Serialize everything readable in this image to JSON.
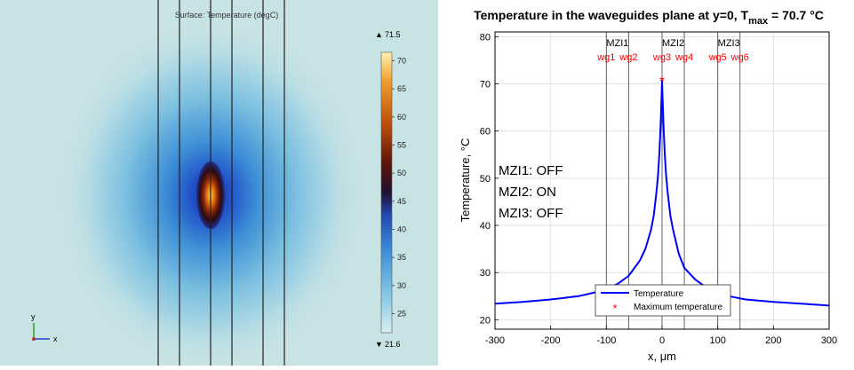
{
  "chart_data": [
    {
      "type": "heatmap",
      "title": "Surface: Temperature (degC)",
      "colorbar": {
        "max_label": "71.5",
        "min_label": "21.6",
        "ticks": [
          25,
          30,
          35,
          40,
          45,
          50,
          55,
          60,
          65,
          70
        ],
        "range": [
          21.6,
          71.5
        ]
      },
      "hotspot_center": 70.7,
      "axes_triad": {
        "y_label": "y",
        "x_label": "x"
      },
      "waveguide_lines_count": 6
    },
    {
      "type": "line",
      "title_main": "Temperature in the waveguides plane at y=0, T",
      "title_sub": "max",
      "title_value": " = 70.7 °C",
      "xlabel": "x, μm",
      "ylabel": "Temperature, °C",
      "xlim": [
        -300,
        300
      ],
      "ylim": [
        18,
        81
      ],
      "xticks": [
        -300,
        -200,
        -100,
        0,
        100,
        200,
        300
      ],
      "yticks": [
        20,
        30,
        40,
        50,
        60,
        70,
        80
      ],
      "grid": true,
      "series": [
        {
          "name": "Temperature",
          "color": "#0000ff",
          "x": [
            -300,
            -250,
            -200,
            -150,
            -120,
            -100,
            -80,
            -60,
            -40,
            -30,
            -20,
            -15,
            -10,
            -7,
            -5,
            -3,
            -2,
            -1,
            0,
            1,
            2,
            3,
            5,
            7,
            10,
            15,
            20,
            30,
            40,
            60,
            80,
            100,
            120,
            150,
            200,
            250,
            300
          ],
          "y": [
            23.4,
            23.8,
            24.3,
            25.0,
            25.8,
            26.6,
            27.6,
            29.3,
            32.5,
            35.0,
            39.0,
            42.0,
            47.0,
            51.0,
            55.0,
            60.0,
            63.0,
            67.0,
            70.7,
            67.0,
            63.0,
            60.0,
            55.0,
            51.0,
            47.0,
            42.0,
            39.0,
            34.0,
            31.0,
            28.5,
            26.8,
            25.8,
            25.0,
            24.3,
            23.8,
            23.4,
            23.0
          ]
        },
        {
          "name": "Maximum temperature",
          "color": "#ff0000",
          "marker": "*",
          "x": [
            0
          ],
          "y": [
            70.7
          ]
        }
      ],
      "vertical_lines": [
        -100,
        -60,
        0,
        40,
        100,
        140
      ],
      "mzi_labels": [
        {
          "text": "MZI1",
          "x": -80
        },
        {
          "text": "MZI2",
          "x": 20
        },
        {
          "text": "MZI3",
          "x": 120
        }
      ],
      "wg_labels": [
        {
          "text": "wg1",
          "x": -100
        },
        {
          "text": "wg2",
          "x": -60
        },
        {
          "text": "wg3",
          "x": 0
        },
        {
          "text": "wg4",
          "x": 40
        },
        {
          "text": "wg5",
          "x": 100
        },
        {
          "text": "wg6",
          "x": 140
        }
      ],
      "state_annotations": [
        "MZI1: OFF",
        "MZI2: ON",
        "MZI3: OFF"
      ],
      "legend_position": "bottom-center"
    }
  ]
}
